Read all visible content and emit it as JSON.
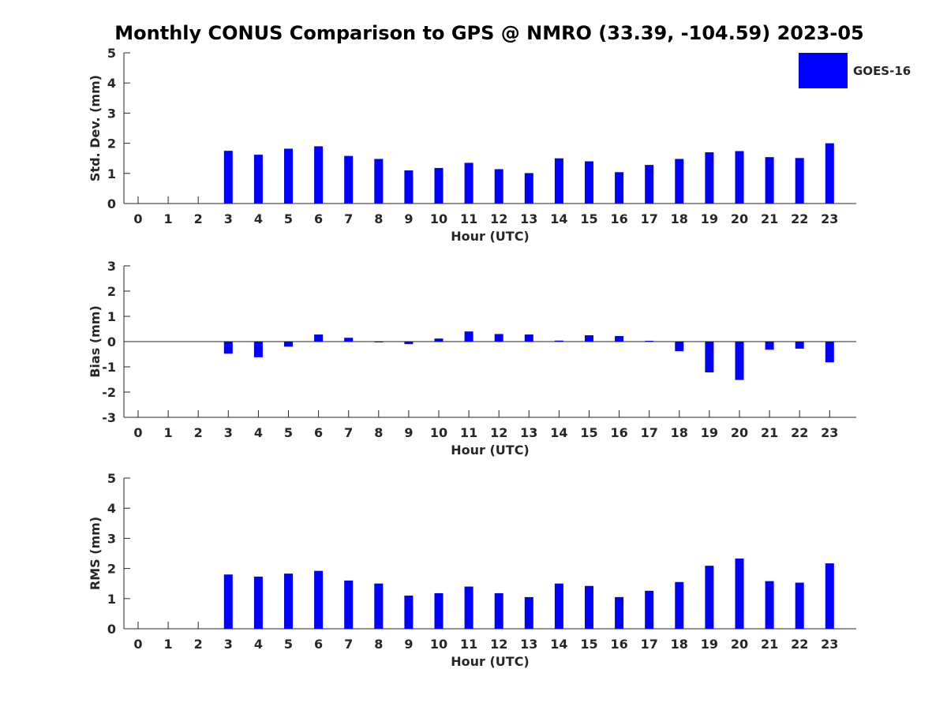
{
  "title": "Monthly CONUS Comparison to GPS @ NMRO (33.39, -104.59) 2023-05",
  "legend": {
    "label": "GOES-16",
    "color": "#0000ff",
    "placement": "top-right"
  },
  "chart_data": [
    {
      "type": "bar",
      "xlabel": "Hour (UTC)",
      "ylabel": "Std. Dev. (mm)",
      "ylim": [
        0,
        5
      ],
      "yticks": [
        0,
        1,
        2,
        3,
        4,
        5
      ],
      "categories": [
        "0",
        "1",
        "2",
        "3",
        "4",
        "5",
        "6",
        "7",
        "8",
        "9",
        "10",
        "11",
        "12",
        "13",
        "14",
        "15",
        "16",
        "17",
        "18",
        "19",
        "20",
        "21",
        "22",
        "23"
      ],
      "series": [
        {
          "name": "GOES-16",
          "values": [
            null,
            null,
            null,
            1.75,
            1.62,
            1.82,
            1.9,
            1.58,
            1.48,
            1.1,
            1.18,
            1.35,
            1.14,
            1.01,
            1.5,
            1.4,
            1.04,
            1.28,
            1.48,
            1.7,
            1.74,
            1.54,
            1.51,
            2.0
          ]
        }
      ]
    },
    {
      "type": "bar",
      "xlabel": "Hour (UTC)",
      "ylabel": "Bias (mm)",
      "ylim": [
        -3,
        3
      ],
      "yticks": [
        -3,
        -2,
        -1,
        0,
        1,
        2,
        3
      ],
      "categories": [
        "0",
        "1",
        "2",
        "3",
        "4",
        "5",
        "6",
        "7",
        "8",
        "9",
        "10",
        "11",
        "12",
        "13",
        "14",
        "15",
        "16",
        "17",
        "18",
        "19",
        "20",
        "21",
        "22",
        "23"
      ],
      "series": [
        {
          "name": "GOES-16",
          "values": [
            null,
            null,
            null,
            -0.48,
            -0.62,
            -0.2,
            0.28,
            0.15,
            -0.02,
            -0.1,
            0.12,
            0.4,
            0.3,
            0.28,
            0.04,
            0.25,
            0.22,
            0.03,
            -0.38,
            -1.22,
            -1.52,
            -0.32,
            -0.28,
            -0.82
          ]
        }
      ]
    },
    {
      "type": "bar",
      "xlabel": "Hour (UTC)",
      "ylabel": "RMS (mm)",
      "ylim": [
        0,
        5
      ],
      "yticks": [
        0,
        1,
        2,
        3,
        4,
        5
      ],
      "categories": [
        "0",
        "1",
        "2",
        "3",
        "4",
        "5",
        "6",
        "7",
        "8",
        "9",
        "10",
        "11",
        "12",
        "13",
        "14",
        "15",
        "16",
        "17",
        "18",
        "19",
        "20",
        "21",
        "22",
        "23"
      ],
      "series": [
        {
          "name": "GOES-16",
          "values": [
            null,
            null,
            null,
            1.8,
            1.73,
            1.83,
            1.92,
            1.6,
            1.5,
            1.1,
            1.18,
            1.4,
            1.18,
            1.05,
            1.5,
            1.42,
            1.05,
            1.26,
            1.55,
            2.09,
            2.33,
            1.58,
            1.53,
            2.17
          ]
        }
      ]
    }
  ]
}
